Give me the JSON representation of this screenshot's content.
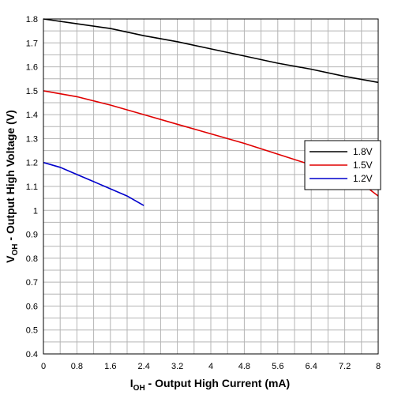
{
  "chart_data": {
    "type": "line",
    "title": "",
    "xlabel": {
      "main": "I",
      "sub": "OH",
      "rest": " - Output High Current (mA)"
    },
    "ylabel": {
      "main": "V",
      "sub": "OH",
      "rest": " - Output High Voltage (V)"
    },
    "xlim": [
      0,
      8
    ],
    "ylim": [
      0.4,
      1.8
    ],
    "xticks": [
      "0",
      "0.8",
      "1.6",
      "2.4",
      "3.2",
      "4",
      "4.8",
      "5.6",
      "6.4",
      "7.2",
      "8"
    ],
    "yticks": [
      "0.4",
      "0.5",
      "0.6",
      "0.7",
      "0.8",
      "0.9",
      "1",
      "1.1",
      "1.2",
      "1.3",
      "1.4",
      "1.5",
      "1.6",
      "1.7",
      "1.8"
    ],
    "grid": true,
    "legend_position": "right",
    "series": [
      {
        "name": "1.8V",
        "color": "#000000",
        "points": [
          [
            0,
            1.8
          ],
          [
            0.8,
            1.78
          ],
          [
            1.6,
            1.76
          ],
          [
            2.4,
            1.73
          ],
          [
            3.2,
            1.705
          ],
          [
            4,
            1.675
          ],
          [
            4.8,
            1.645
          ],
          [
            5.6,
            1.615
          ],
          [
            6.4,
            1.59
          ],
          [
            7.2,
            1.56
          ],
          [
            8,
            1.535
          ]
        ]
      },
      {
        "name": "1.5V",
        "color": "#e00000",
        "points": [
          [
            0,
            1.5
          ],
          [
            0.8,
            1.475
          ],
          [
            1.6,
            1.44
          ],
          [
            2.4,
            1.4
          ],
          [
            3.2,
            1.36
          ],
          [
            4,
            1.32
          ],
          [
            4.8,
            1.28
          ],
          [
            5.6,
            1.235
          ],
          [
            6.4,
            1.19
          ],
          [
            6.9,
            1.165
          ],
          [
            7.3,
            1.14
          ],
          [
            7.7,
            1.1
          ],
          [
            8,
            1.06
          ]
        ]
      },
      {
        "name": "1.2V",
        "color": "#0000cc",
        "points": [
          [
            0,
            1.2
          ],
          [
            0.4,
            1.18
          ],
          [
            0.8,
            1.15
          ],
          [
            1.2,
            1.12
          ],
          [
            1.6,
            1.09
          ],
          [
            2.0,
            1.06
          ],
          [
            2.4,
            1.02
          ]
        ]
      }
    ]
  }
}
